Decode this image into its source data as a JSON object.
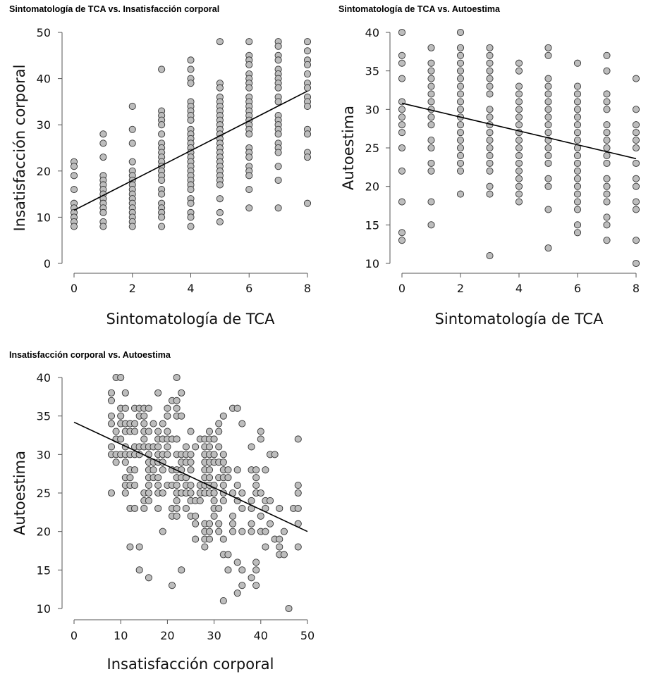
{
  "chart_data": [
    {
      "type": "scatter",
      "title": "Sintomatología de TCA vs. Insatisfacción corporal",
      "xlabel": "Sintomatología de TCA",
      "ylabel": "Insatisfacción corporal",
      "xlim": [
        0,
        8
      ],
      "ylim": [
        0,
        50
      ],
      "xticks": [
        0,
        2,
        4,
        6,
        8
      ],
      "yticks": [
        0,
        10,
        20,
        30,
        40,
        50
      ],
      "grid": false,
      "point_color": "#bdbdbd",
      "regression": {
        "intercept": 11.5,
        "slope": 3.225
      },
      "columns": [
        {
          "x": 0,
          "y": [
            22,
            21,
            19,
            16,
            13,
            12,
            11,
            10,
            9,
            8
          ]
        },
        {
          "x": 1,
          "y": [
            28,
            26,
            23,
            19,
            18,
            17,
            16,
            15,
            14,
            13,
            12,
            11,
            9,
            8
          ]
        },
        {
          "x": 2,
          "y": [
            34,
            29,
            26,
            22,
            20,
            19,
            18,
            17,
            16,
            15,
            14,
            13,
            12,
            11,
            10,
            9,
            8
          ]
        },
        {
          "x": 3,
          "y": [
            42,
            33,
            32,
            31,
            30,
            28,
            26,
            25,
            24,
            23,
            22,
            21,
            20,
            19,
            18,
            16,
            15,
            13,
            12,
            11,
            10,
            8
          ]
        },
        {
          "x": 4,
          "y": [
            44,
            42,
            40,
            39,
            35,
            34,
            33,
            32,
            31,
            29,
            28,
            27,
            26,
            25,
            24,
            23,
            22,
            21,
            20,
            19,
            18,
            17,
            16,
            14,
            13,
            11,
            10,
            8
          ]
        },
        {
          "x": 5,
          "y": [
            48,
            39,
            38,
            36,
            35,
            34,
            33,
            32,
            31,
            30,
            29,
            28,
            27,
            26,
            25,
            24,
            23,
            22,
            21,
            20,
            19,
            18,
            17,
            14,
            11,
            9
          ]
        },
        {
          "x": 6,
          "y": [
            48,
            45,
            44,
            43,
            41,
            40,
            39,
            38,
            36,
            35,
            34,
            33,
            32,
            31,
            30,
            29,
            28,
            25,
            24,
            23,
            21,
            20,
            19,
            16,
            12
          ]
        },
        {
          "x": 7,
          "y": [
            48,
            47,
            45,
            44,
            42,
            41,
            40,
            39,
            38,
            36,
            35,
            32,
            31,
            30,
            29,
            28,
            26,
            25,
            24,
            21,
            18,
            12
          ]
        },
        {
          "x": 8,
          "y": [
            48,
            46,
            44,
            43,
            41,
            39,
            38,
            36,
            35,
            34,
            29,
            28,
            24,
            23,
            13
          ]
        }
      ]
    },
    {
      "type": "scatter",
      "title": "Sintomatología de TCA vs. Autoestima",
      "xlabel": "Sintomatología de TCA",
      "ylabel": "Autoestima",
      "xlim": [
        0,
        8
      ],
      "ylim": [
        10,
        40
      ],
      "xticks": [
        0,
        2,
        4,
        6,
        8
      ],
      "yticks": [
        10,
        15,
        20,
        25,
        30,
        35,
        40
      ],
      "grid": false,
      "point_color": "#bdbdbd",
      "regression": {
        "intercept": 30.8,
        "slope": -0.9
      },
      "columns": [
        {
          "x": 0,
          "y": [
            40,
            37,
            36,
            34,
            31,
            30,
            29,
            28,
            27,
            25,
            22,
            18,
            14,
            13
          ]
        },
        {
          "x": 1,
          "y": [
            38,
            36,
            35,
            34,
            33,
            32,
            31,
            30,
            29,
            28,
            26,
            25,
            23,
            22,
            18,
            15
          ]
        },
        {
          "x": 2,
          "y": [
            40,
            38,
            37,
            36,
            35,
            34,
            33,
            32,
            31,
            30,
            29,
            28,
            27,
            26,
            25,
            24,
            23,
            22,
            19
          ]
        },
        {
          "x": 3,
          "y": [
            38,
            37,
            36,
            35,
            34,
            33,
            32,
            30,
            29,
            28,
            27,
            26,
            25,
            24,
            23,
            22,
            20,
            19,
            11
          ]
        },
        {
          "x": 4,
          "y": [
            36,
            35,
            33,
            32,
            31,
            30,
            29,
            28,
            27,
            26,
            25,
            24,
            23,
            22,
            21,
            20,
            19,
            18
          ]
        },
        {
          "x": 5,
          "y": [
            38,
            37,
            34,
            33,
            32,
            31,
            30,
            29,
            28,
            27,
            26,
            25,
            24,
            23,
            21,
            20,
            17,
            12
          ]
        },
        {
          "x": 6,
          "y": [
            36,
            33,
            32,
            31,
            30,
            29,
            28,
            27,
            26,
            25,
            24,
            23,
            22,
            21,
            20,
            19,
            18,
            17,
            15,
            14
          ]
        },
        {
          "x": 7,
          "y": [
            37,
            35,
            32,
            31,
            30,
            28,
            27,
            26,
            25,
            24,
            23,
            21,
            20,
            19,
            18,
            16,
            15,
            13
          ]
        },
        {
          "x": 8,
          "y": [
            34,
            30,
            28,
            27,
            26,
            25,
            23,
            21,
            20,
            18,
            17,
            13,
            10
          ]
        }
      ]
    },
    {
      "type": "scatter",
      "title": "Insatisfacción corporal vs. Autoestima",
      "xlabel": "Insatisfacción corporal",
      "ylabel": "Autoestima",
      "xlim": [
        0,
        50
      ],
      "ylim": [
        10,
        40
      ],
      "xticks": [
        0,
        10,
        20,
        30,
        40,
        50
      ],
      "yticks": [
        10,
        15,
        20,
        25,
        30,
        35,
        40
      ],
      "grid": false,
      "point_color": "#bdbdbd",
      "regression": {
        "intercept": 34.2,
        "slope": -0.284
      },
      "rows": [
        {
          "y": 40,
          "x": [
            9,
            10,
            22
          ]
        },
        {
          "y": 38,
          "x": [
            8,
            11,
            18,
            23
          ]
        },
        {
          "y": 37,
          "x": [
            8,
            21,
            22
          ]
        },
        {
          "y": 36,
          "x": [
            10,
            11,
            13,
            14,
            15,
            16,
            20,
            22,
            34,
            35
          ]
        },
        {
          "y": 35,
          "x": [
            8,
            10,
            14,
            15,
            20,
            22,
            23,
            32
          ]
        },
        {
          "y": 34,
          "x": [
            8,
            10,
            11,
            12,
            13,
            15,
            17,
            19,
            31,
            36
          ]
        },
        {
          "y": 33,
          "x": [
            9,
            11,
            12,
            13,
            15,
            16,
            18,
            20,
            25,
            29,
            31,
            40
          ]
        },
        {
          "y": 32,
          "x": [
            9,
            10,
            15,
            18,
            19,
            20,
            21,
            22,
            27,
            28,
            29,
            30,
            40,
            48
          ]
        },
        {
          "y": 31,
          "x": [
            8,
            11,
            13,
            14,
            15,
            16,
            17,
            18,
            20,
            24,
            26,
            28,
            29,
            31,
            38
          ]
        },
        {
          "y": 30,
          "x": [
            8,
            9,
            10,
            11,
            12,
            13,
            14,
            16,
            18,
            19,
            20,
            22,
            23,
            24,
            25,
            28,
            29,
            30,
            32,
            42,
            43
          ]
        },
        {
          "y": 29,
          "x": [
            9,
            11,
            16,
            17,
            18,
            19,
            23,
            24,
            25,
            28,
            29,
            30,
            31,
            32
          ]
        },
        {
          "y": 28,
          "x": [
            12,
            13,
            16,
            17,
            19,
            21,
            22,
            23,
            25,
            28,
            29,
            32,
            33,
            35,
            38,
            39,
            41
          ]
        },
        {
          "y": 27,
          "x": [
            11,
            12,
            16,
            17,
            18,
            22,
            23,
            24,
            28,
            29,
            31,
            32,
            33,
            39
          ]
        },
        {
          "y": 26,
          "x": [
            11,
            12,
            13,
            16,
            18,
            20,
            21,
            22,
            24,
            25,
            27,
            28,
            29,
            30,
            32,
            35,
            39,
            48
          ]
        },
        {
          "y": 25,
          "x": [
            8,
            11,
            15,
            16,
            18,
            19,
            22,
            23,
            24,
            25,
            27,
            28,
            29,
            30,
            32,
            34,
            36,
            39,
            40,
            48
          ]
        },
        {
          "y": 24,
          "x": [
            15,
            16,
            22,
            25,
            26,
            27,
            30,
            32,
            35,
            38,
            41,
            42
          ]
        },
        {
          "y": 23,
          "x": [
            12,
            13,
            15,
            18,
            21,
            22,
            24,
            30,
            31,
            36,
            38,
            41,
            44,
            47,
            48
          ]
        },
        {
          "y": 22,
          "x": [
            21,
            22,
            25,
            26,
            30,
            34,
            40
          ]
        },
        {
          "y": 21,
          "x": [
            26,
            28,
            29,
            31,
            34,
            38,
            42,
            48
          ]
        },
        {
          "y": 20,
          "x": [
            19,
            28,
            29,
            31,
            34,
            36,
            38,
            40,
            41,
            45
          ]
        },
        {
          "y": 19,
          "x": [
            26,
            28,
            29,
            32,
            43,
            44
          ]
        },
        {
          "y": 18,
          "x": [
            12,
            14,
            28,
            41,
            44,
            48
          ]
        },
        {
          "y": 17,
          "x": [
            32,
            33,
            44,
            45
          ]
        },
        {
          "y": 16,
          "x": [
            35,
            39
          ]
        },
        {
          "y": 15,
          "x": [
            14,
            23,
            33,
            36,
            39
          ]
        },
        {
          "y": 14,
          "x": [
            16,
            38
          ]
        },
        {
          "y": 13,
          "x": [
            21,
            36,
            39
          ]
        },
        {
          "y": 12,
          "x": [
            35
          ]
        },
        {
          "y": 11,
          "x": [
            32
          ]
        },
        {
          "y": 10,
          "x": [
            46
          ]
        }
      ]
    }
  ]
}
